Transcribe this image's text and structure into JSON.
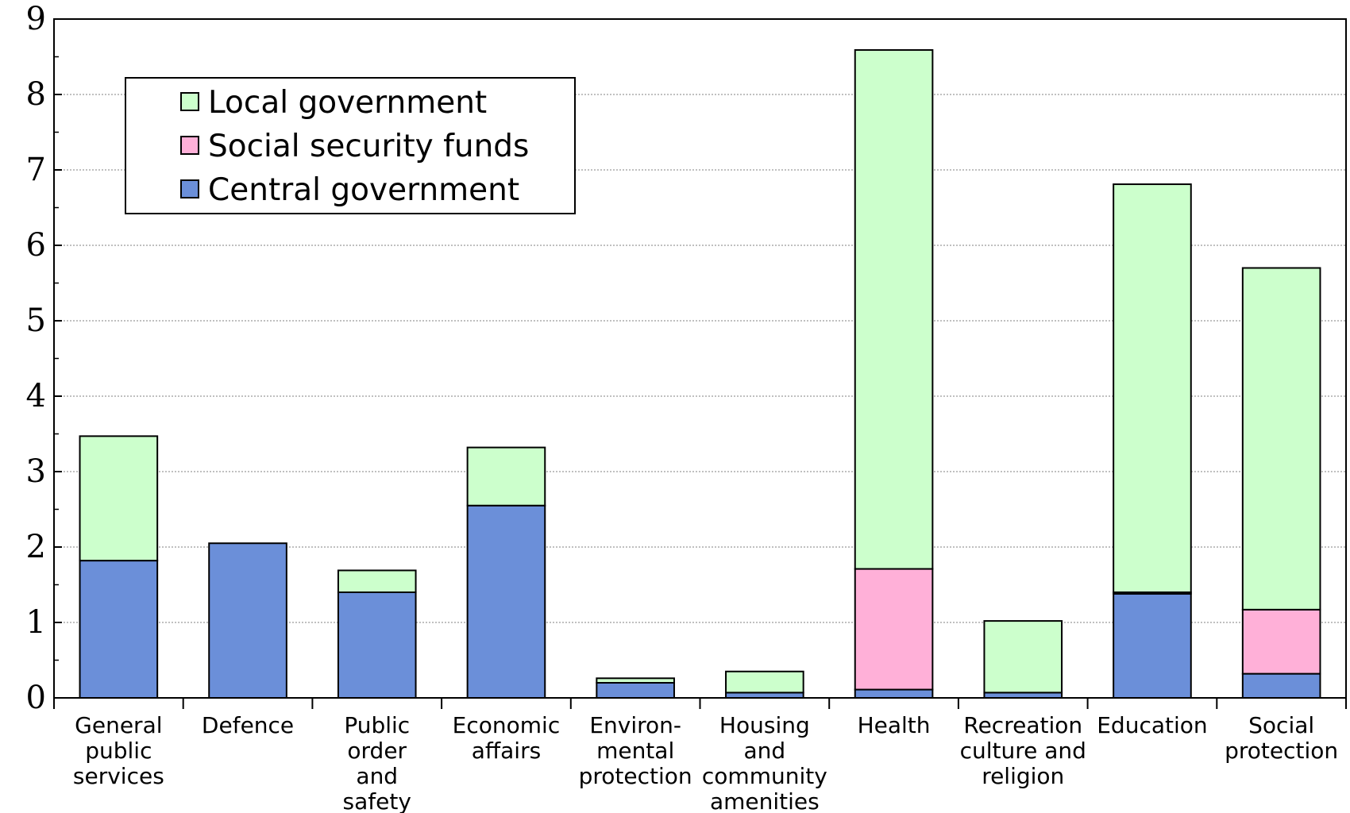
{
  "chart_data": {
    "type": "bar",
    "stacked": true,
    "title": "",
    "xlabel": "",
    "ylabel": "",
    "ylim": [
      0,
      9
    ],
    "yticks": [
      0,
      1,
      2,
      3,
      4,
      5,
      6,
      7,
      8,
      9
    ],
    "grid": true,
    "legend_position": "top-left",
    "categories": [
      [
        "General",
        "public",
        "services"
      ],
      [
        "Defence"
      ],
      [
        "Public",
        "order",
        "and",
        "safety"
      ],
      [
        "Economic",
        "affairs"
      ],
      [
        "Environ-",
        "mental",
        "protection"
      ],
      [
        "Housing",
        "and",
        "community",
        "amenities"
      ],
      [
        "Health"
      ],
      [
        "Recreation",
        "culture and",
        "religion"
      ],
      [
        "Education"
      ],
      [
        "Social",
        "protection"
      ]
    ],
    "series": [
      {
        "name": "Central government",
        "color": "#6b8fd9",
        "values": [
          1.82,
          2.05,
          1.4,
          2.55,
          0.2,
          0.07,
          0.11,
          0.07,
          1.38,
          0.32
        ]
      },
      {
        "name": "Social security funds",
        "color": "#ffb0d8",
        "values": [
          0,
          0,
          0,
          0,
          0,
          0,
          1.6,
          0,
          0.02,
          0.85
        ]
      },
      {
        "name": "Local government",
        "color": "#ccffcc",
        "values": [
          1.65,
          0,
          0.29,
          0.77,
          0.06,
          0.28,
          6.88,
          0.95,
          5.41,
          4.53
        ]
      }
    ],
    "legend_order": [
      "Local government",
      "Social security funds",
      "Central government"
    ]
  }
}
